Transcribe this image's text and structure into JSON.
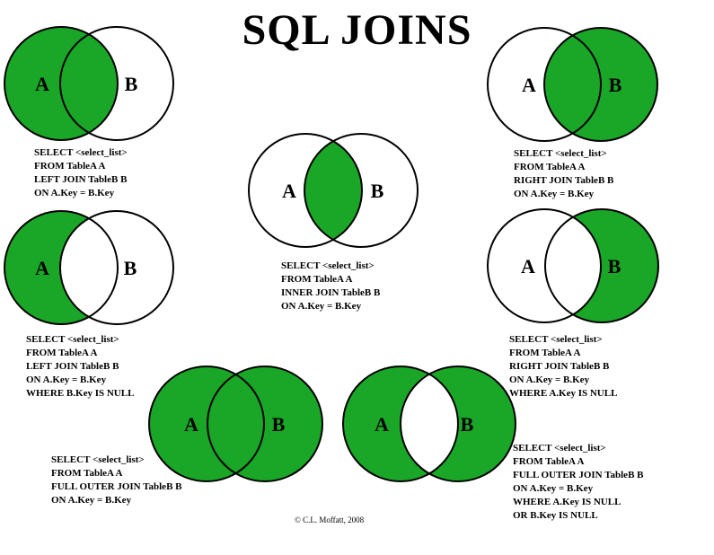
{
  "title": "SQL JOINS",
  "credit": "© C.L. Moffatt, 2008",
  "colors": {
    "fill": "#1aa626",
    "stroke": "#000000",
    "background": "#ffffff"
  },
  "set_labels": {
    "a": "A",
    "b": "B"
  },
  "joins": [
    {
      "id": "left-join",
      "shaded": "all-of-A",
      "sql": [
        "SELECT <select_list>",
        "FROM TableA A",
        "LEFT JOIN TableB B",
        "ON A.Key = B.Key"
      ]
    },
    {
      "id": "right-join",
      "shaded": "all-of-B",
      "sql": [
        "SELECT <select_list>",
        "FROM TableA A",
        "RIGHT JOIN TableB B",
        "ON A.Key = B.Key"
      ]
    },
    {
      "id": "inner-join",
      "shaded": "intersection",
      "sql": [
        "SELECT <select_list>",
        "FROM TableA A",
        "INNER JOIN TableB B",
        "ON A.Key = B.Key"
      ]
    },
    {
      "id": "left-join-exclusive",
      "shaded": "A-only",
      "sql": [
        "SELECT <select_list>",
        "FROM TableA A",
        "LEFT JOIN TableB B",
        "ON A.Key = B.Key",
        "WHERE B.Key IS NULL"
      ]
    },
    {
      "id": "right-join-exclusive",
      "shaded": "B-only",
      "sql": [
        "SELECT <select_list>",
        "FROM TableA A",
        "RIGHT JOIN TableB B",
        "ON A.Key = B.Key",
        "WHERE A.Key IS NULL"
      ]
    },
    {
      "id": "full-outer-join",
      "shaded": "union",
      "sql": [
        "SELECT <select_list>",
        "FROM TableA A",
        "FULL OUTER JOIN TableB B",
        "ON A.Key = B.Key"
      ]
    },
    {
      "id": "full-outer-join-exclusive",
      "shaded": "symmetric-difference",
      "sql": [
        "SELECT <select_list>",
        "FROM TableA A",
        "FULL OUTER JOIN TableB B",
        "ON A.Key = B.Key",
        "WHERE A.Key IS NULL",
        "OR B.Key IS NULL"
      ]
    }
  ]
}
